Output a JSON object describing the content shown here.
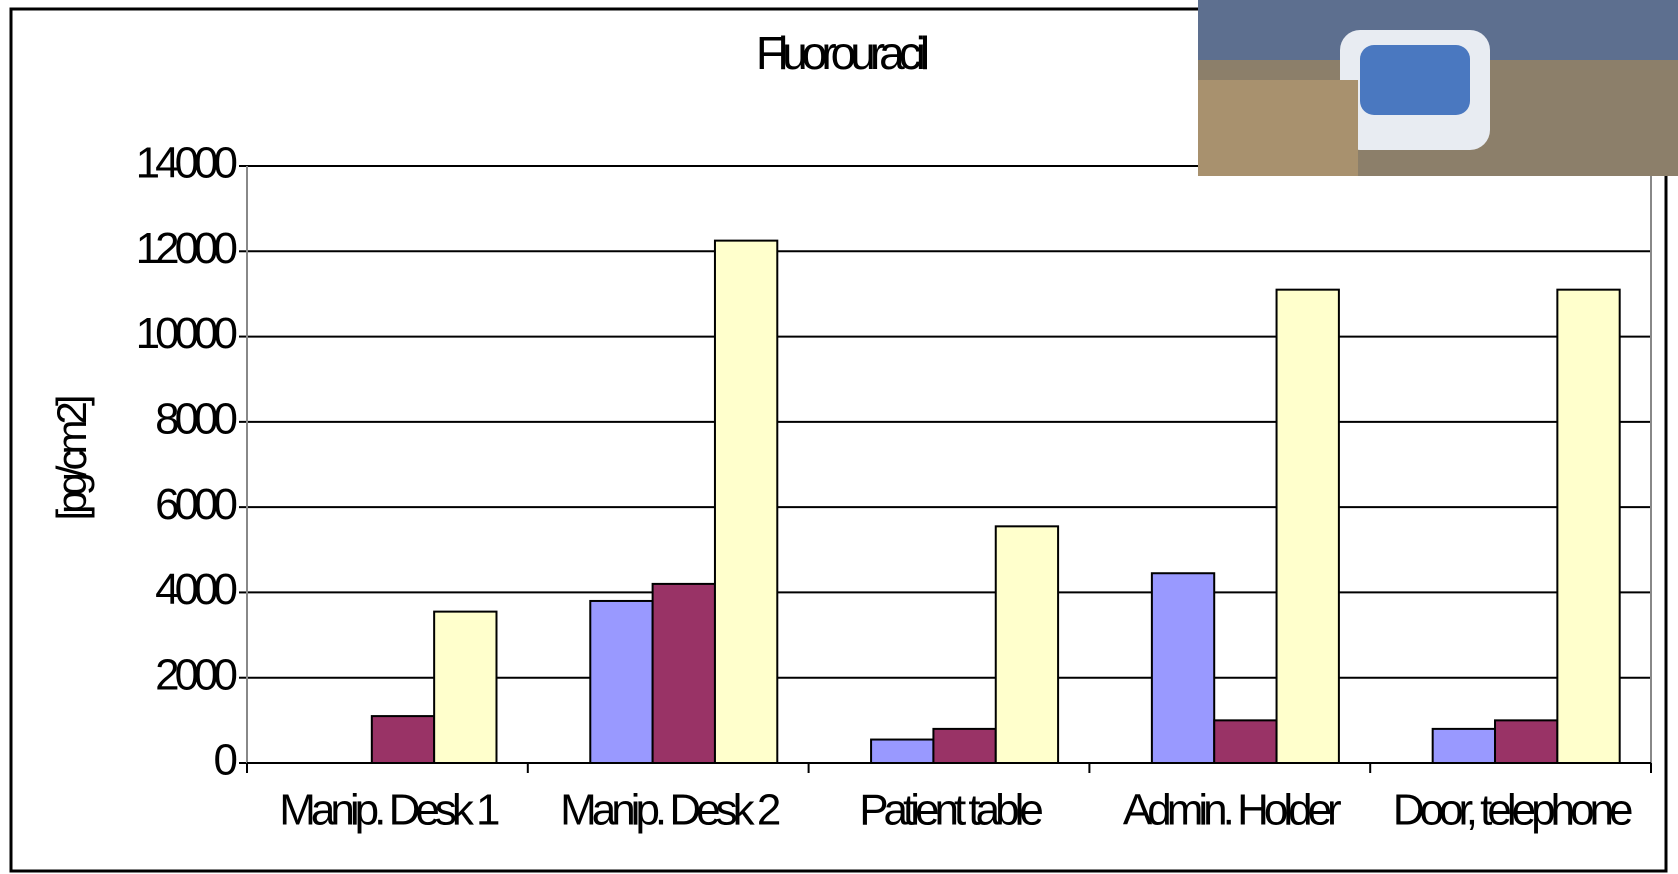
{
  "chart_data": {
    "type": "bar",
    "title": "Fluorouracil",
    "y_label": "[pg/cm2]",
    "categories": [
      "Manip. Desk 1",
      "Manip. Desk 2",
      "Patient table",
      "Admin. Holder",
      "Door, telephone"
    ],
    "series": [
      {
        "color": "#9999ff",
        "values": [
          null,
          3800,
          550,
          4450,
          800
        ]
      },
      {
        "color": "#993366",
        "values": [
          1100,
          4200,
          800,
          1000,
          1000
        ]
      },
      {
        "color": "#ffffcc",
        "values": [
          3550,
          12250,
          5550,
          11100,
          11100
        ]
      }
    ],
    "ylim": [
      0,
      14000
    ],
    "yticks": [
      0,
      2000,
      4000,
      6000,
      8000,
      10000,
      12000,
      14000
    ],
    "grid": true
  }
}
